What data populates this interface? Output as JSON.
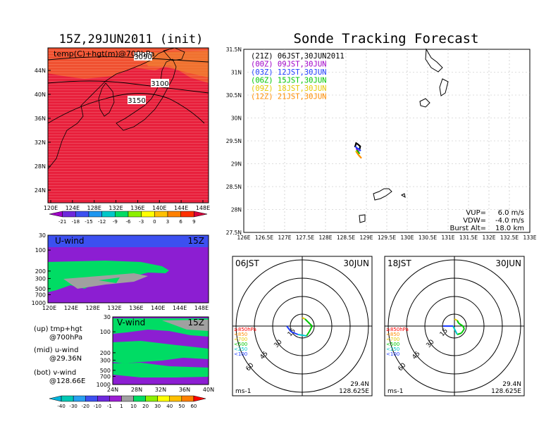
{
  "left_title": "15Z,29JUN2011 (init)",
  "right_title": "Sonde Tracking Forecast",
  "top_map": {
    "label": "temp(C)+hgt(m)@700hPa",
    "contour_labels": [
      "3090",
      "3100",
      "3150"
    ],
    "lat_ticks": [
      "44N",
      "40N",
      "36N",
      "32N",
      "28N",
      "24N"
    ],
    "lon_ticks": [
      "120E",
      "124E",
      "128E",
      "132E",
      "136E",
      "140E",
      "144E",
      "148E"
    ],
    "colorbar_labels": [
      "-21",
      "-18",
      "-15",
      "-12",
      "-9",
      "-6",
      "-3",
      "0",
      "3",
      "6",
      "9"
    ],
    "colorbar_colors": [
      "#a000c8",
      "#6e28dc",
      "#3c50f0",
      "#1e96f0",
      "#00c8c8",
      "#00dc64",
      "#8cf000",
      "#ffff00",
      "#ffc000",
      "#ff8000",
      "#ff3000",
      "#d8003c"
    ]
  },
  "u_wind": {
    "label": "U-wind",
    "time": "15Z",
    "levels": [
      "30",
      "100",
      "200",
      "300",
      "500",
      "700",
      "1000"
    ],
    "lon_ticks": [
      "120E",
      "124E",
      "128E",
      "132E",
      "136E",
      "140E",
      "144E",
      "148E"
    ]
  },
  "v_wind": {
    "label": "V-wind",
    "time": "15Z",
    "levels": [
      "30",
      "100",
      "200",
      "300",
      "500",
      "700",
      "1000"
    ],
    "lat_ticks": [
      "24N",
      "28N",
      "32N",
      "36N",
      "40N"
    ]
  },
  "legend_notes": [
    {
      "title": "(up) tmp+hgt",
      "sub": "@700hPa"
    },
    {
      "title": "(mid) u-wind",
      "sub": "@29.36N"
    },
    {
      "title": "(bot) v-wind",
      "sub": "@128.66E"
    }
  ],
  "wind_colorbar": {
    "labels": [
      "-40",
      "-30",
      "-20",
      "-10",
      "-1",
      "1",
      "10",
      "20",
      "30",
      "40",
      "50",
      "60"
    ],
    "colors": [
      "#00b4dc",
      "#00c8b4",
      "#28a0f0",
      "#3c50f0",
      "#6e28dc",
      "#9b1ed2",
      "#a0a0a0",
      "#00dc64",
      "#8cf000",
      "#ffff00",
      "#ffc000",
      "#ff8000",
      "#ff0000"
    ]
  },
  "tracking": {
    "lat_ticks": [
      "31.5N",
      "31N",
      "30.5N",
      "30N",
      "29.5N",
      "29N",
      "28.5N",
      "28N",
      "27.5N"
    ],
    "lon_ticks": [
      "126E",
      "126.5E",
      "127E",
      "127.5E",
      "128E",
      "128.5E",
      "129E",
      "129.5E",
      "130E",
      "130.5E",
      "131E",
      "131.5E",
      "132E",
      "132.5E",
      "133E"
    ],
    "legend": [
      {
        "text": "(21Z) 06JST,30JUN2011",
        "color": "#000000"
      },
      {
        "text": "(00Z) 09JST,30JUN",
        "color": "#a000c8"
      },
      {
        "text": "(03Z) 12JST,30JUN",
        "color": "#1e3cff"
      },
      {
        "text": "(06Z) 15JST,30JUN",
        "color": "#00c800"
      },
      {
        "text": "(09Z) 18JST,30JUN",
        "color": "#e6c800"
      },
      {
        "text": "(12Z) 21JST,30JUN",
        "color": "#ff8c00"
      }
    ],
    "params": [
      {
        "label": "VUP=",
        "value": "6.0  m/s"
      },
      {
        "label": "VDW=",
        "value": "-4.0  m/s"
      },
      {
        "label": "Burst Alt=",
        "value": "18.0  km"
      }
    ]
  },
  "hodographs": [
    {
      "time": "06JST",
      "date": "30JUN",
      "rings": [
        "15",
        "30",
        "45",
        "60"
      ],
      "levels": [
        {
          "text": "≥850hPa",
          "color": "#ff0000"
        },
        {
          "text": "<850",
          "color": "#ff8c00"
        },
        {
          "text": "<700",
          "color": "#e6c800"
        },
        {
          "text": "<500",
          "color": "#00c800"
        },
        {
          "text": "<250",
          "color": "#00c8c8"
        },
        {
          "text": "<100",
          "color": "#1e3cff"
        }
      ],
      "unit": "ms-1",
      "lat": "29.4N",
      "lon": "128.625E"
    },
    {
      "time": "18JST",
      "date": "30JUN",
      "rings": [
        "15",
        "30",
        "45",
        "60"
      ],
      "levels": [
        {
          "text": "≥850hPa",
          "color": "#ff0000"
        },
        {
          "text": "<850",
          "color": "#ff8c00"
        },
        {
          "text": "<700",
          "color": "#e6c800"
        },
        {
          "text": "<500",
          "color": "#00c800"
        },
        {
          "text": "<250",
          "color": "#00c8c8"
        },
        {
          "text": "<100",
          "color": "#1e3cff"
        }
      ],
      "unit": "ms-1",
      "lat": "29.4N",
      "lon": "128.625E"
    }
  ],
  "chart_data": [
    {
      "type": "heatmap",
      "title": "15Z,29JUN2011 (init)",
      "xlabel": "",
      "ylabel": "",
      "xlim": [
        120,
        150
      ],
      "ylim": [
        21,
        48
      ],
      "color_levels": [
        -21,
        -18,
        -15,
        -12,
        -9,
        -6,
        -3,
        0,
        3,
        6,
        9
      ],
      "contours": [
        3090,
        3100,
        3150
      ]
    },
    {
      "type": "line",
      "title": "Sonde Tracking Forecast",
      "xlim": [
        126,
        133
      ],
      "ylim": [
        27.5,
        31.5
      ],
      "series": [
        {
          "name": "(21Z) 06JST,30JUN2011",
          "x": [
            128.72,
            128.75,
            128.8,
            128.85,
            128.83
          ],
          "y": [
            29.36,
            29.45,
            29.42,
            29.38,
            29.3
          ]
        },
        {
          "name": "(00Z) 09JST,30JUN",
          "x": [
            128.75,
            128.78,
            128.82
          ],
          "y": [
            29.34,
            29.3,
            29.26
          ]
        },
        {
          "name": "(03Z) 12JST,30JUN",
          "x": [
            128.73,
            128.77,
            128.82,
            128.86
          ],
          "y": [
            29.38,
            29.34,
            29.32,
            29.28
          ]
        },
        {
          "name": "(06Z) 15JST,30JUN",
          "x": [
            128.76,
            128.8,
            128.84
          ],
          "y": [
            29.3,
            29.25,
            29.22
          ]
        },
        {
          "name": "(09Z) 18JST,30JUN",
          "x": [
            128.74,
            128.8,
            128.86
          ],
          "y": [
            29.28,
            29.2,
            29.14
          ]
        },
        {
          "name": "(12Z) 21JST,30JUN",
          "x": [
            128.76,
            128.82,
            128.88
          ],
          "y": [
            29.26,
            29.18,
            29.12
          ]
        }
      ]
    }
  ]
}
